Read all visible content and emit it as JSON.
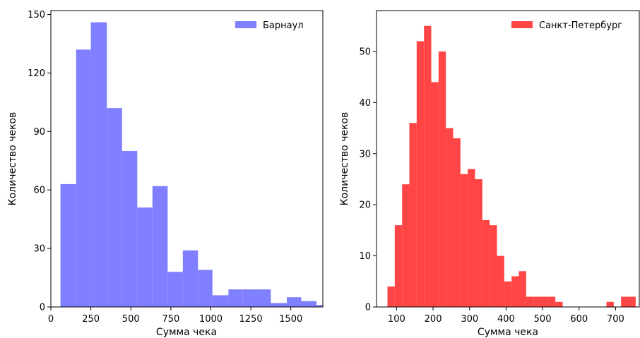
{
  "chart_data": [
    {
      "type": "bar",
      "subtype": "histogram",
      "title": "",
      "xlabel": "Сумма чека",
      "ylabel": "Количество чеков",
      "xlim": [
        0,
        1700
      ],
      "ylim": [
        0,
        152
      ],
      "xticks": [
        0,
        250,
        500,
        750,
        1000,
        1250,
        1500
      ],
      "yticks": [
        0,
        30,
        60,
        90,
        120,
        150
      ],
      "legend_position": "top-right",
      "grid": false,
      "series": [
        {
          "name": "Барнаул",
          "color": "#7f7fff",
          "bins": [
            {
              "x0": 60,
              "x1": 158,
              "y": 63
            },
            {
              "x0": 158,
              "x1": 250,
              "y": 132
            },
            {
              "x0": 250,
              "x1": 350,
              "y": 146
            },
            {
              "x0": 350,
              "x1": 445,
              "y": 102
            },
            {
              "x0": 445,
              "x1": 540,
              "y": 80
            },
            {
              "x0": 540,
              "x1": 635,
              "y": 51
            },
            {
              "x0": 635,
              "x1": 730,
              "y": 62
            },
            {
              "x0": 730,
              "x1": 825,
              "y": 18
            },
            {
              "x0": 825,
              "x1": 920,
              "y": 29
            },
            {
              "x0": 920,
              "x1": 1010,
              "y": 19
            },
            {
              "x0": 1010,
              "x1": 1110,
              "y": 6
            },
            {
              "x0": 1110,
              "x1": 1200,
              "y": 9
            },
            {
              "x0": 1200,
              "x1": 1300,
              "y": 9
            },
            {
              "x0": 1300,
              "x1": 1375,
              "y": 9
            },
            {
              "x0": 1375,
              "x1": 1475,
              "y": 2
            },
            {
              "x0": 1475,
              "x1": 1565,
              "y": 5
            },
            {
              "x0": 1565,
              "x1": 1660,
              "y": 3
            },
            {
              "x0": 1660,
              "x1": 1700,
              "y": 1
            }
          ]
        }
      ]
    },
    {
      "type": "bar",
      "subtype": "histogram",
      "title": "",
      "xlabel": "Сумма чека",
      "ylabel": "Количество чеков",
      "xlim": [
        45,
        765
      ],
      "ylim": [
        0,
        58
      ],
      "xticks": [
        100,
        200,
        300,
        400,
        500,
        600,
        700
      ],
      "yticks": [
        0,
        10,
        20,
        30,
        40,
        50
      ],
      "legend_position": "top-right",
      "grid": false,
      "series": [
        {
          "name": "Санкт-Петербург",
          "color": "#ff4545",
          "bins": [
            {
              "x0": 75,
              "x1": 95,
              "y": 4
            },
            {
              "x0": 95,
              "x1": 115,
              "y": 16
            },
            {
              "x0": 115,
              "x1": 135,
              "y": 24
            },
            {
              "x0": 135,
              "x1": 155,
              "y": 36
            },
            {
              "x0": 155,
              "x1": 175,
              "y": 52
            },
            {
              "x0": 175,
              "x1": 195,
              "y": 55
            },
            {
              "x0": 195,
              "x1": 215,
              "y": 44
            },
            {
              "x0": 215,
              "x1": 235,
              "y": 50
            },
            {
              "x0": 235,
              "x1": 255,
              "y": 35
            },
            {
              "x0": 255,
              "x1": 275,
              "y": 33
            },
            {
              "x0": 275,
              "x1": 295,
              "y": 26
            },
            {
              "x0": 295,
              "x1": 315,
              "y": 27
            },
            {
              "x0": 315,
              "x1": 335,
              "y": 25
            },
            {
              "x0": 335,
              "x1": 355,
              "y": 17
            },
            {
              "x0": 355,
              "x1": 375,
              "y": 16
            },
            {
              "x0": 375,
              "x1": 395,
              "y": 10
            },
            {
              "x0": 395,
              "x1": 415,
              "y": 5
            },
            {
              "x0": 415,
              "x1": 435,
              "y": 6
            },
            {
              "x0": 435,
              "x1": 455,
              "y": 7
            },
            {
              "x0": 455,
              "x1": 475,
              "y": 2
            },
            {
              "x0": 475,
              "x1": 495,
              "y": 2
            },
            {
              "x0": 495,
              "x1": 515,
              "y": 2
            },
            {
              "x0": 515,
              "x1": 535,
              "y": 2
            },
            {
              "x0": 535,
              "x1": 555,
              "y": 1
            },
            {
              "x0": 675,
              "x1": 695,
              "y": 1
            },
            {
              "x0": 715,
              "x1": 735,
              "y": 2
            },
            {
              "x0": 735,
              "x1": 755,
              "y": 2
            }
          ]
        }
      ]
    }
  ]
}
